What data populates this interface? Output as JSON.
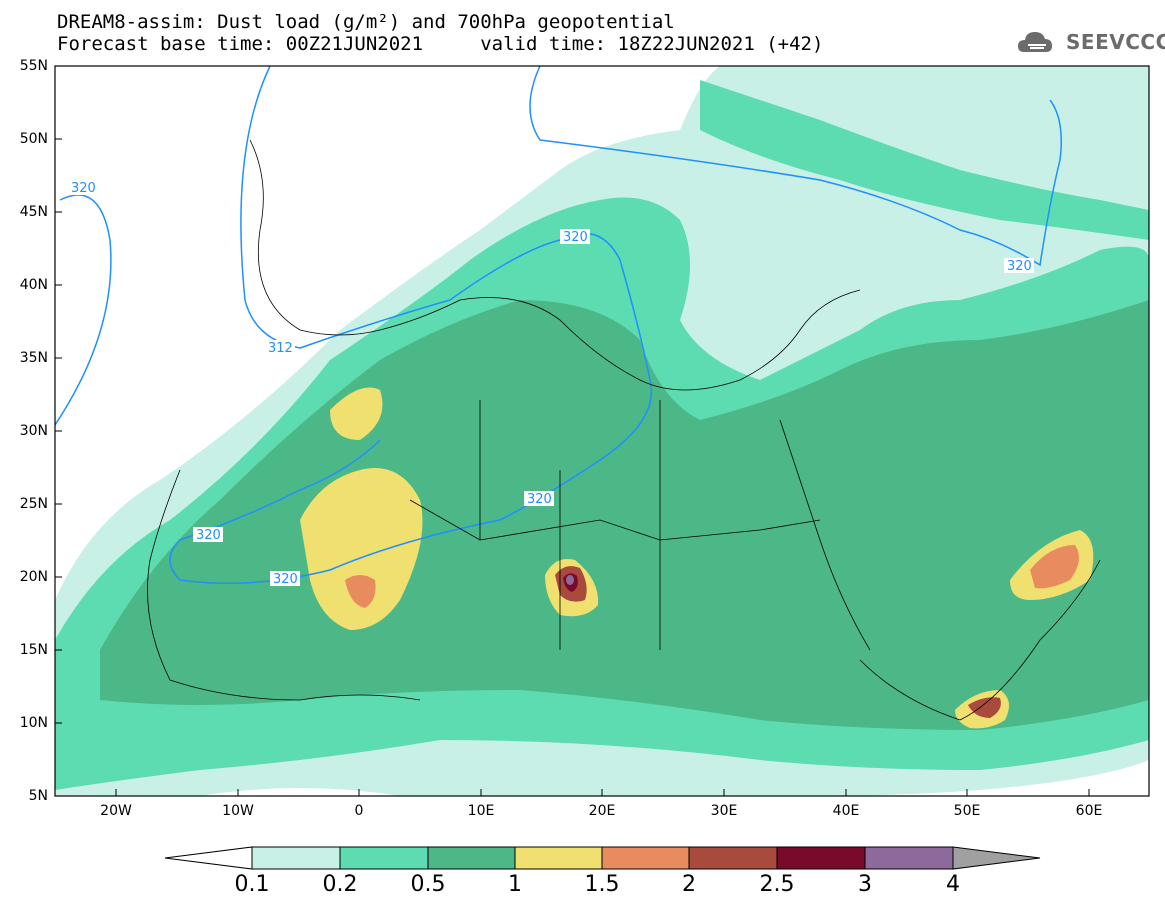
{
  "header": {
    "line1": "DREAM8-assim: Dust load (g/m²) and 700hPa geopotential",
    "line2": "Forecast base time: 00Z21JUN2021     valid time: 18Z22JUN2021 (+42)"
  },
  "logo": {
    "text": "SEEVCCC",
    "icon": "cloud-icon"
  },
  "map": {
    "lat_labels": [
      "55N",
      "50N",
      "45N",
      "40N",
      "35N",
      "30N",
      "25N",
      "20N",
      "15N",
      "10N",
      "5N"
    ],
    "lon_labels": [
      "20W",
      "10W",
      "0",
      "10E",
      "20E",
      "30E",
      "40E",
      "50E",
      "60E"
    ],
    "contour_labels": [
      "320",
      "312",
      "320",
      "320",
      "320",
      "320",
      "320"
    ]
  },
  "colorbar": {
    "labels": [
      "0.1",
      "0.2",
      "0.5",
      "1",
      "1.5",
      "2",
      "2.5",
      "3",
      "4"
    ],
    "colors": [
      "#c8f0e6",
      "#5cdcb0",
      "#4cb888",
      "#f0e070",
      "#e88c60",
      "#a84a3c",
      "#7a0a2c",
      "#8c6a9c"
    ],
    "under_color": "#ffffff",
    "over_color": "#a0a0a0"
  }
}
